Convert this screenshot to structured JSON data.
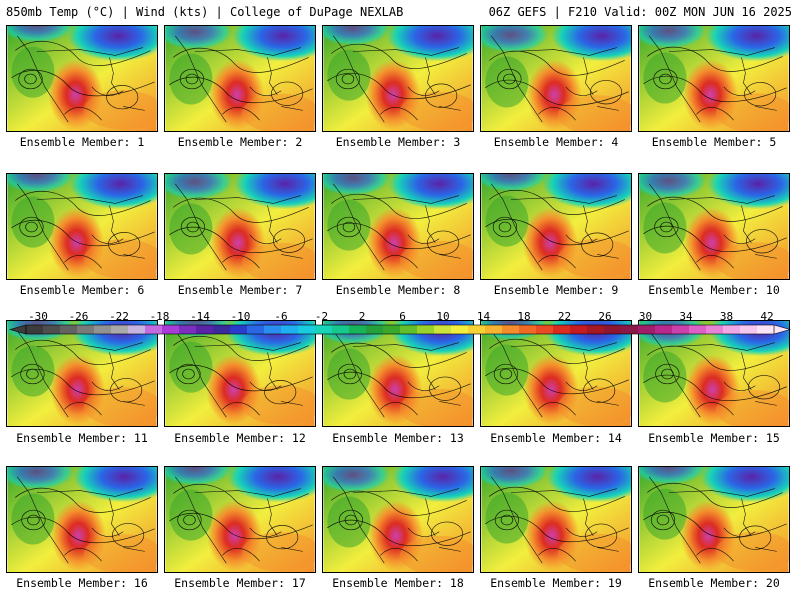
{
  "header": {
    "left_title": "850mb Temp (°C) | Wind (kts) | College of DuPage NEXLAB",
    "right_title": "06Z GEFS | F210 Valid: 00Z MON JUN 16 2025"
  },
  "member_label_prefix": "Ensemble Member: ",
  "members": [
    {
      "label": "Ensemble Member: 1"
    },
    {
      "label": "Ensemble Member: 2"
    },
    {
      "label": "Ensemble Member: 3"
    },
    {
      "label": "Ensemble Member: 4"
    },
    {
      "label": "Ensemble Member: 5"
    },
    {
      "label": "Ensemble Member: 6"
    },
    {
      "label": "Ensemble Member: 7"
    },
    {
      "label": "Ensemble Member: 8"
    },
    {
      "label": "Ensemble Member: 9"
    },
    {
      "label": "Ensemble Member: 10"
    },
    {
      "label": "Ensemble Member: 11"
    },
    {
      "label": "Ensemble Member: 12"
    },
    {
      "label": "Ensemble Member: 13"
    },
    {
      "label": "Ensemble Member: 14"
    },
    {
      "label": "Ensemble Member: 15"
    },
    {
      "label": "Ensemble Member: 16"
    },
    {
      "label": "Ensemble Member: 17"
    },
    {
      "label": "Ensemble Member: 18"
    },
    {
      "label": "Ensemble Member: 19"
    },
    {
      "label": "Ensemble Member: 20"
    }
  ],
  "colorbar": {
    "tick_labels": [
      "-30",
      "-26",
      "-22",
      "-18",
      "-14",
      "-10",
      "-6",
      "-2",
      "2",
      "6",
      "10",
      "14",
      "18",
      "22",
      "26",
      "30",
      "34",
      "38",
      "42"
    ],
    "colors": [
      "#3c3c3c",
      "#4e4e4e",
      "#636363",
      "#7a7a7a",
      "#929292",
      "#aaaaaa",
      "#c7b3e0",
      "#c46be0",
      "#a93cd8",
      "#7a2fc0",
      "#5a23a8",
      "#3a2a9c",
      "#2a3ccc",
      "#2a66e6",
      "#2a8ef0",
      "#1fb0f0",
      "#19cde0",
      "#17d3b8",
      "#15c98c",
      "#17b45a",
      "#25a03a",
      "#3aa82a",
      "#62be2a",
      "#9ad22c",
      "#cde43a",
      "#f2ee3e",
      "#f6d236",
      "#f6b430",
      "#f48e2c",
      "#f06a26",
      "#ea4a24",
      "#dc2c22",
      "#c41c20",
      "#a61824",
      "#8e1630",
      "#8a1848",
      "#a01e6a",
      "#b8288e",
      "#cc40ae",
      "#dc60c6",
      "#e884d8",
      "#f0a8e6",
      "#f6c8f0",
      "#fbe4f8"
    ]
  },
  "map_colors": {
    "cold": "#5a23a8",
    "cool": "#2a66e6",
    "mild": "#17d3b8",
    "green": "#3aa82a",
    "warm": "#f2ee3e",
    "hot": "#f48e2c",
    "vhot": "#dc2c22",
    "extreme": "#cc40ae"
  }
}
